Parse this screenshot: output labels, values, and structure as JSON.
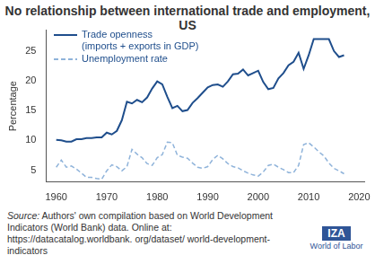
{
  "chart_data": {
    "type": "line",
    "title": "No relationship between international trade and employment, US",
    "y_label": "Percentage",
    "x": [
      1960,
      1961,
      1962,
      1963,
      1964,
      1965,
      1966,
      1967,
      1968,
      1969,
      1970,
      1971,
      1972,
      1973,
      1974,
      1975,
      1976,
      1977,
      1978,
      1979,
      1980,
      1981,
      1982,
      1983,
      1984,
      1985,
      1986,
      1987,
      1988,
      1989,
      1990,
      1991,
      1992,
      1993,
      1994,
      1995,
      1996,
      1997,
      1998,
      1999,
      2000,
      2001,
      2002,
      2003,
      2004,
      2005,
      2006,
      2007,
      2008,
      2009,
      2010,
      2011,
      2012,
      2013,
      2014,
      2015,
      2016,
      2017
    ],
    "series": [
      {
        "name": "Trade openness (imports + exports in GDP)",
        "color": "#1f4e8c",
        "line_style": "solid",
        "marker": "none",
        "values": [
          10.1,
          10.0,
          9.8,
          9.8,
          10.2,
          10.2,
          10.4,
          10.4,
          10.5,
          10.5,
          11.3,
          11.0,
          11.6,
          13.4,
          16.5,
          16.2,
          16.8,
          16.4,
          17.2,
          18.7,
          19.9,
          19.4,
          17.3,
          15.4,
          15.8,
          14.9,
          15.1,
          16.3,
          17.1,
          18.0,
          18.9,
          19.3,
          19.4,
          19.0,
          19.9,
          21.1,
          21.2,
          21.9,
          20.9,
          21.3,
          21.7,
          19.8,
          18.6,
          18.8,
          20.4,
          21.3,
          22.6,
          23.2,
          24.7,
          22.0,
          24.3,
          27.0,
          27.0,
          27.0,
          27.0,
          25.0,
          24.0,
          24.3
        ]
      },
      {
        "name": "Unemployment rate",
        "color": "#8fb3da",
        "line_style": "dashed",
        "marker": "none",
        "values": [
          5.5,
          6.7,
          5.5,
          5.7,
          5.2,
          4.5,
          3.8,
          3.8,
          3.6,
          3.5,
          4.9,
          5.9,
          5.6,
          4.9,
          5.6,
          8.5,
          7.7,
          7.1,
          6.1,
          5.8,
          7.1,
          7.6,
          9.7,
          9.6,
          7.5,
          7.2,
          7.0,
          6.2,
          5.5,
          5.3,
          5.6,
          6.8,
          7.5,
          6.9,
          6.1,
          5.6,
          5.4,
          4.9,
          4.5,
          4.2,
          4.0,
          4.7,
          5.8,
          6.0,
          5.5,
          5.1,
          4.6,
          4.6,
          5.8,
          9.3,
          9.6,
          8.9,
          8.1,
          7.4,
          6.2,
          5.3,
          4.9,
          4.4
        ]
      }
    ],
    "xlim": [
      1958,
      2021
    ],
    "xticks": [
      1960,
      1970,
      1980,
      1990,
      2000,
      2010,
      2020
    ],
    "ylim": [
      3,
      28.5
    ],
    "yticks": [
      5,
      10,
      15,
      20,
      25
    ],
    "grid": false,
    "legend": "upper left",
    "source": "Source: Authors' own compilation based on World Development Indicators (World Bank) data. Online at: https://datacatalog.worldbank. org/dataset/ world-development-indicators",
    "logo": [
      "IZA",
      "World of Labor"
    ]
  }
}
